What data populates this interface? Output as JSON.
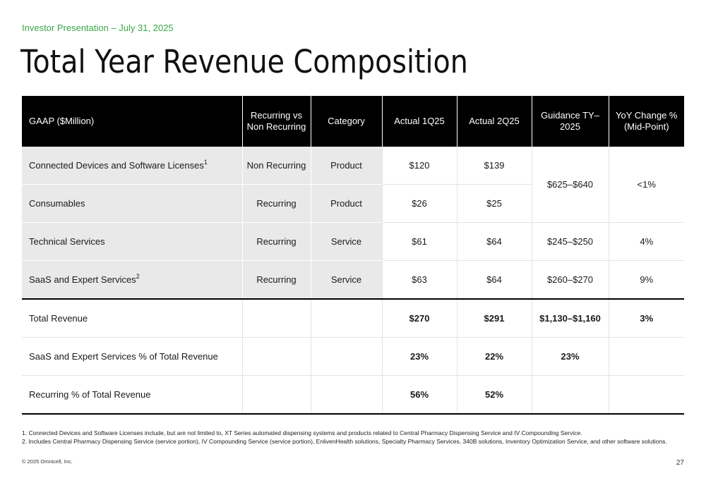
{
  "header": {
    "subtitle": "Investor Presentation – July 31, 2025",
    "title": "Total Year Revenue Composition"
  },
  "table": {
    "columns": [
      "GAAP ($Million)",
      "Recurring vs Non Recurring",
      "Category",
      "Actual 1Q25",
      "Actual 2Q25",
      "Guidance TY–2025",
      "YoY Change % (Mid-Point)"
    ],
    "rows": [
      {
        "label": "Connected Devices and Software Licenses",
        "sup": "1",
        "recurring": "Non Recurring",
        "category": "Product",
        "q1": "$120",
        "q2": "$139"
      },
      {
        "label": "Consumables",
        "sup": "",
        "recurring": "Recurring",
        "category": "Product",
        "q1": "$26",
        "q2": "$25"
      },
      {
        "label": "Technical Services",
        "sup": "",
        "recurring": "Recurring",
        "category": "Service",
        "q1": "$61",
        "q2": "$64",
        "guidance": "$245–$250",
        "yoy": "4%"
      },
      {
        "label": "SaaS and Expert Services",
        "sup": "2",
        "recurring": "Recurring",
        "category": "Service",
        "q1": "$63",
        "q2": "$64",
        "guidance": "$260–$270",
        "yoy": "9%"
      }
    ],
    "merged_guidance": "$625–$640",
    "merged_yoy": "<1%",
    "totals": [
      {
        "label": "Total Revenue",
        "q1": "$270",
        "q2": "$291",
        "guidance": "$1,130–$1,160",
        "yoy": "3%"
      },
      {
        "label": "SaaS and Expert Services % of Total Revenue",
        "q1": "23%",
        "q2": "22%",
        "guidance": "23%",
        "yoy": ""
      },
      {
        "label": "Recurring % of Total Revenue",
        "q1": "56%",
        "q2": "52%",
        "guidance": "",
        "yoy": ""
      }
    ]
  },
  "footnotes": [
    "1.  Connected Devices and Software Licenses include, but are not limited to, XT Series automated dispensing systems and products related to Central Pharmacy Dispensing Service and IV Compounding Service.",
    "2.  Includes Central Pharmacy Dispensing Service (service portion), IV Compounding Service (service portion), EnlivenHealth solutions, Specialty Pharmacy Services, 340B solutions, Inventory Optimization Service, and other software solutions."
  ],
  "footer": {
    "copyright": "© 2025 Omnicell, Inc.",
    "page_number": "27"
  }
}
